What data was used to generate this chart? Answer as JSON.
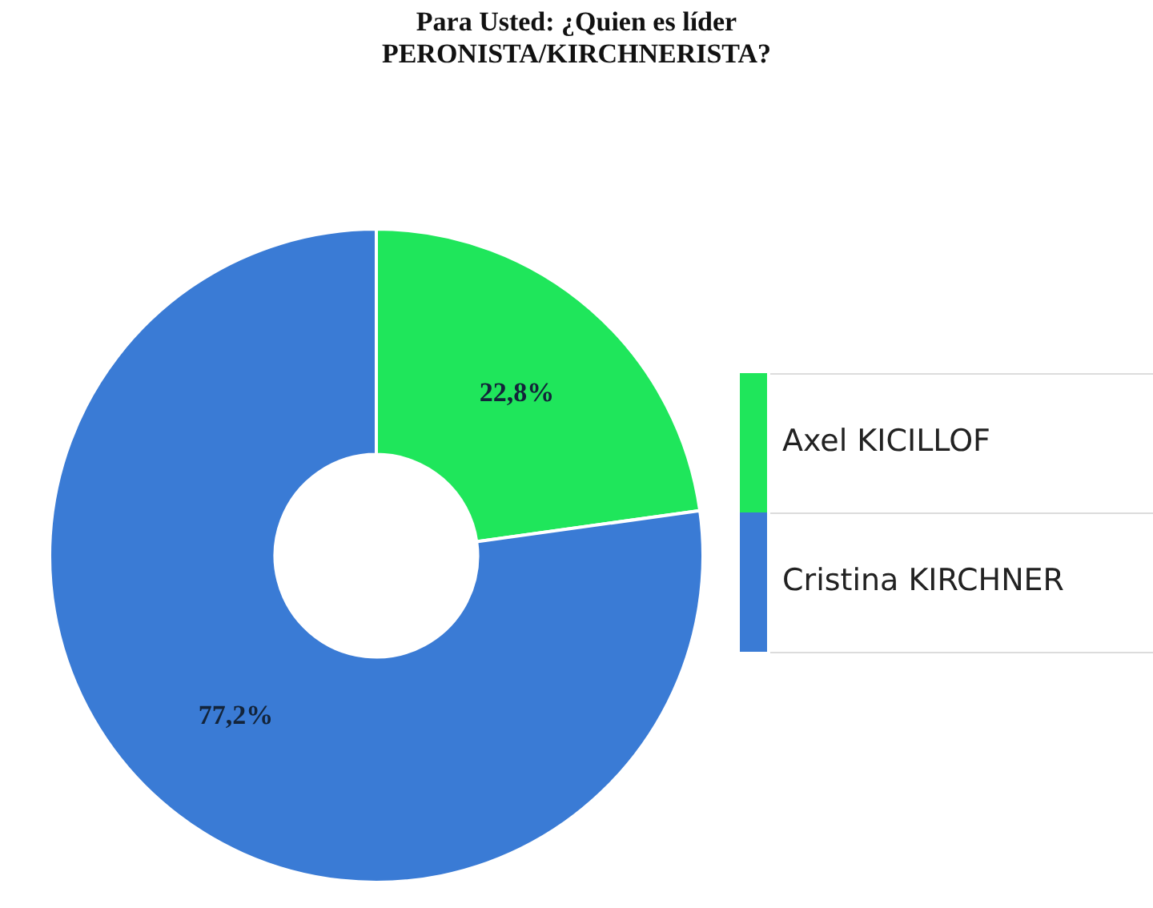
{
  "chart_data": {
    "type": "donut",
    "title": "Para Usted: ¿Quien es líder PERONISTA/KIRCHNERISTA?",
    "categories": [
      "Axel KICILLOF",
      "Cristina KIRCHNER"
    ],
    "values": [
      22.8,
      77.2
    ],
    "colors": [
      "#1fe65b",
      "#3a7bd5"
    ],
    "value_labels": [
      "22,8%",
      "77,2%"
    ],
    "legend": "right"
  }
}
